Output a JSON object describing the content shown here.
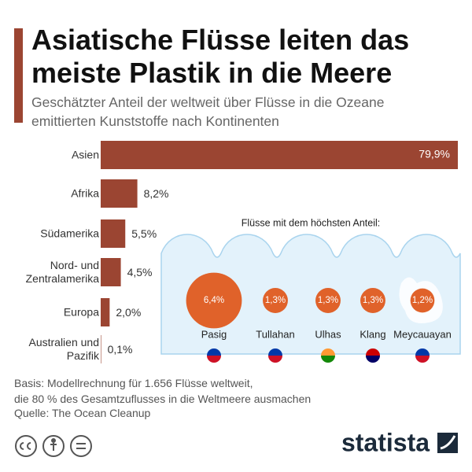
{
  "header": {
    "title": "Asiatische Flüsse leiten das\nmeiste Plastik in die Meere",
    "subtitle": "Geschätzter Anteil der weltweit über Flüsse in die Ozeane\nemittierten Kunststoffe nach Kontinenten"
  },
  "chart_data": [
    {
      "type": "bar",
      "categories": [
        "Asien",
        "Afrika",
        "Südamerika",
        "Nord- und Zentralamerika",
        "Europa",
        "Australien und Pazifik"
      ],
      "values": [
        79.9,
        8.2,
        5.5,
        4.5,
        2.0,
        0.1
      ],
      "value_labels": [
        "79,9%",
        "8,2%",
        "5,5%",
        "4,5%",
        "2,0%",
        "0,1%"
      ],
      "color": "#9b4532"
    },
    {
      "type": "bubble",
      "title": "Flüsse mit dem höchsten Anteil:",
      "categories": [
        "Pasig",
        "Tullahan",
        "Ulhas",
        "Klang",
        "Meycauayan"
      ],
      "values": [
        6.4,
        1.3,
        1.3,
        1.3,
        1.2
      ],
      "value_labels": [
        "6,4%",
        "1,3%",
        "1,3%",
        "1,3%",
        "1,2%"
      ],
      "color": "#e0622a"
    }
  ],
  "footer": {
    "basis": "Basis: Modellrechnung für 1.656 Flüsse weltweit,\ndie 80 % des Gesamtzuflusses in die Weltmeere ausmachen",
    "source": "Quelle: The Ocean Cleanup",
    "logo": "statista"
  }
}
